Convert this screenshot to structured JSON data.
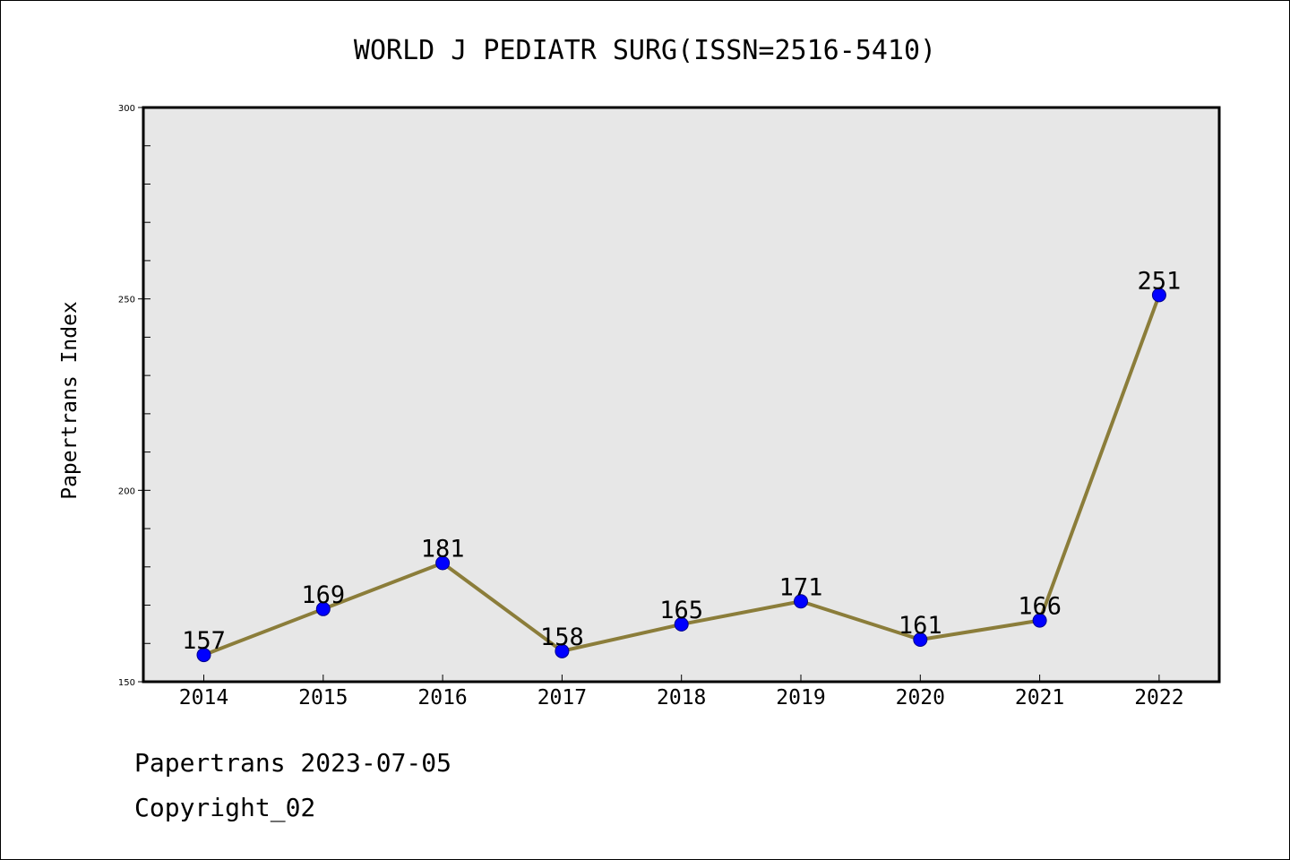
{
  "chart_data": {
    "type": "line",
    "title": "WORLD J PEDIATR SURG(ISSN=2516-5410)",
    "xlabel": "",
    "ylabel": "Papertrans Index",
    "categories": [
      "2014",
      "2015",
      "2016",
      "2017",
      "2018",
      "2019",
      "2020",
      "2021",
      "2022"
    ],
    "series": [
      {
        "values": [
          157,
          169,
          181,
          158,
          165,
          171,
          161,
          166,
          251
        ]
      }
    ],
    "ylim": [
      150,
      300
    ],
    "yticks": [
      "150",
      "200",
      "250",
      "300"
    ],
    "data_labels": [
      "157",
      "169",
      "181",
      "158",
      "165",
      "171",
      "161",
      "166",
      "251"
    ],
    "grid": false,
    "legend": "none",
    "colors": {
      "plot_background": "#e7e7e7",
      "line": "#8b7d3a",
      "marker": "#0000ff",
      "marker_edge": "#00008b"
    }
  },
  "footer": {
    "date": "Papertrans 2023-07-05",
    "copyright": "Copyright_02"
  }
}
